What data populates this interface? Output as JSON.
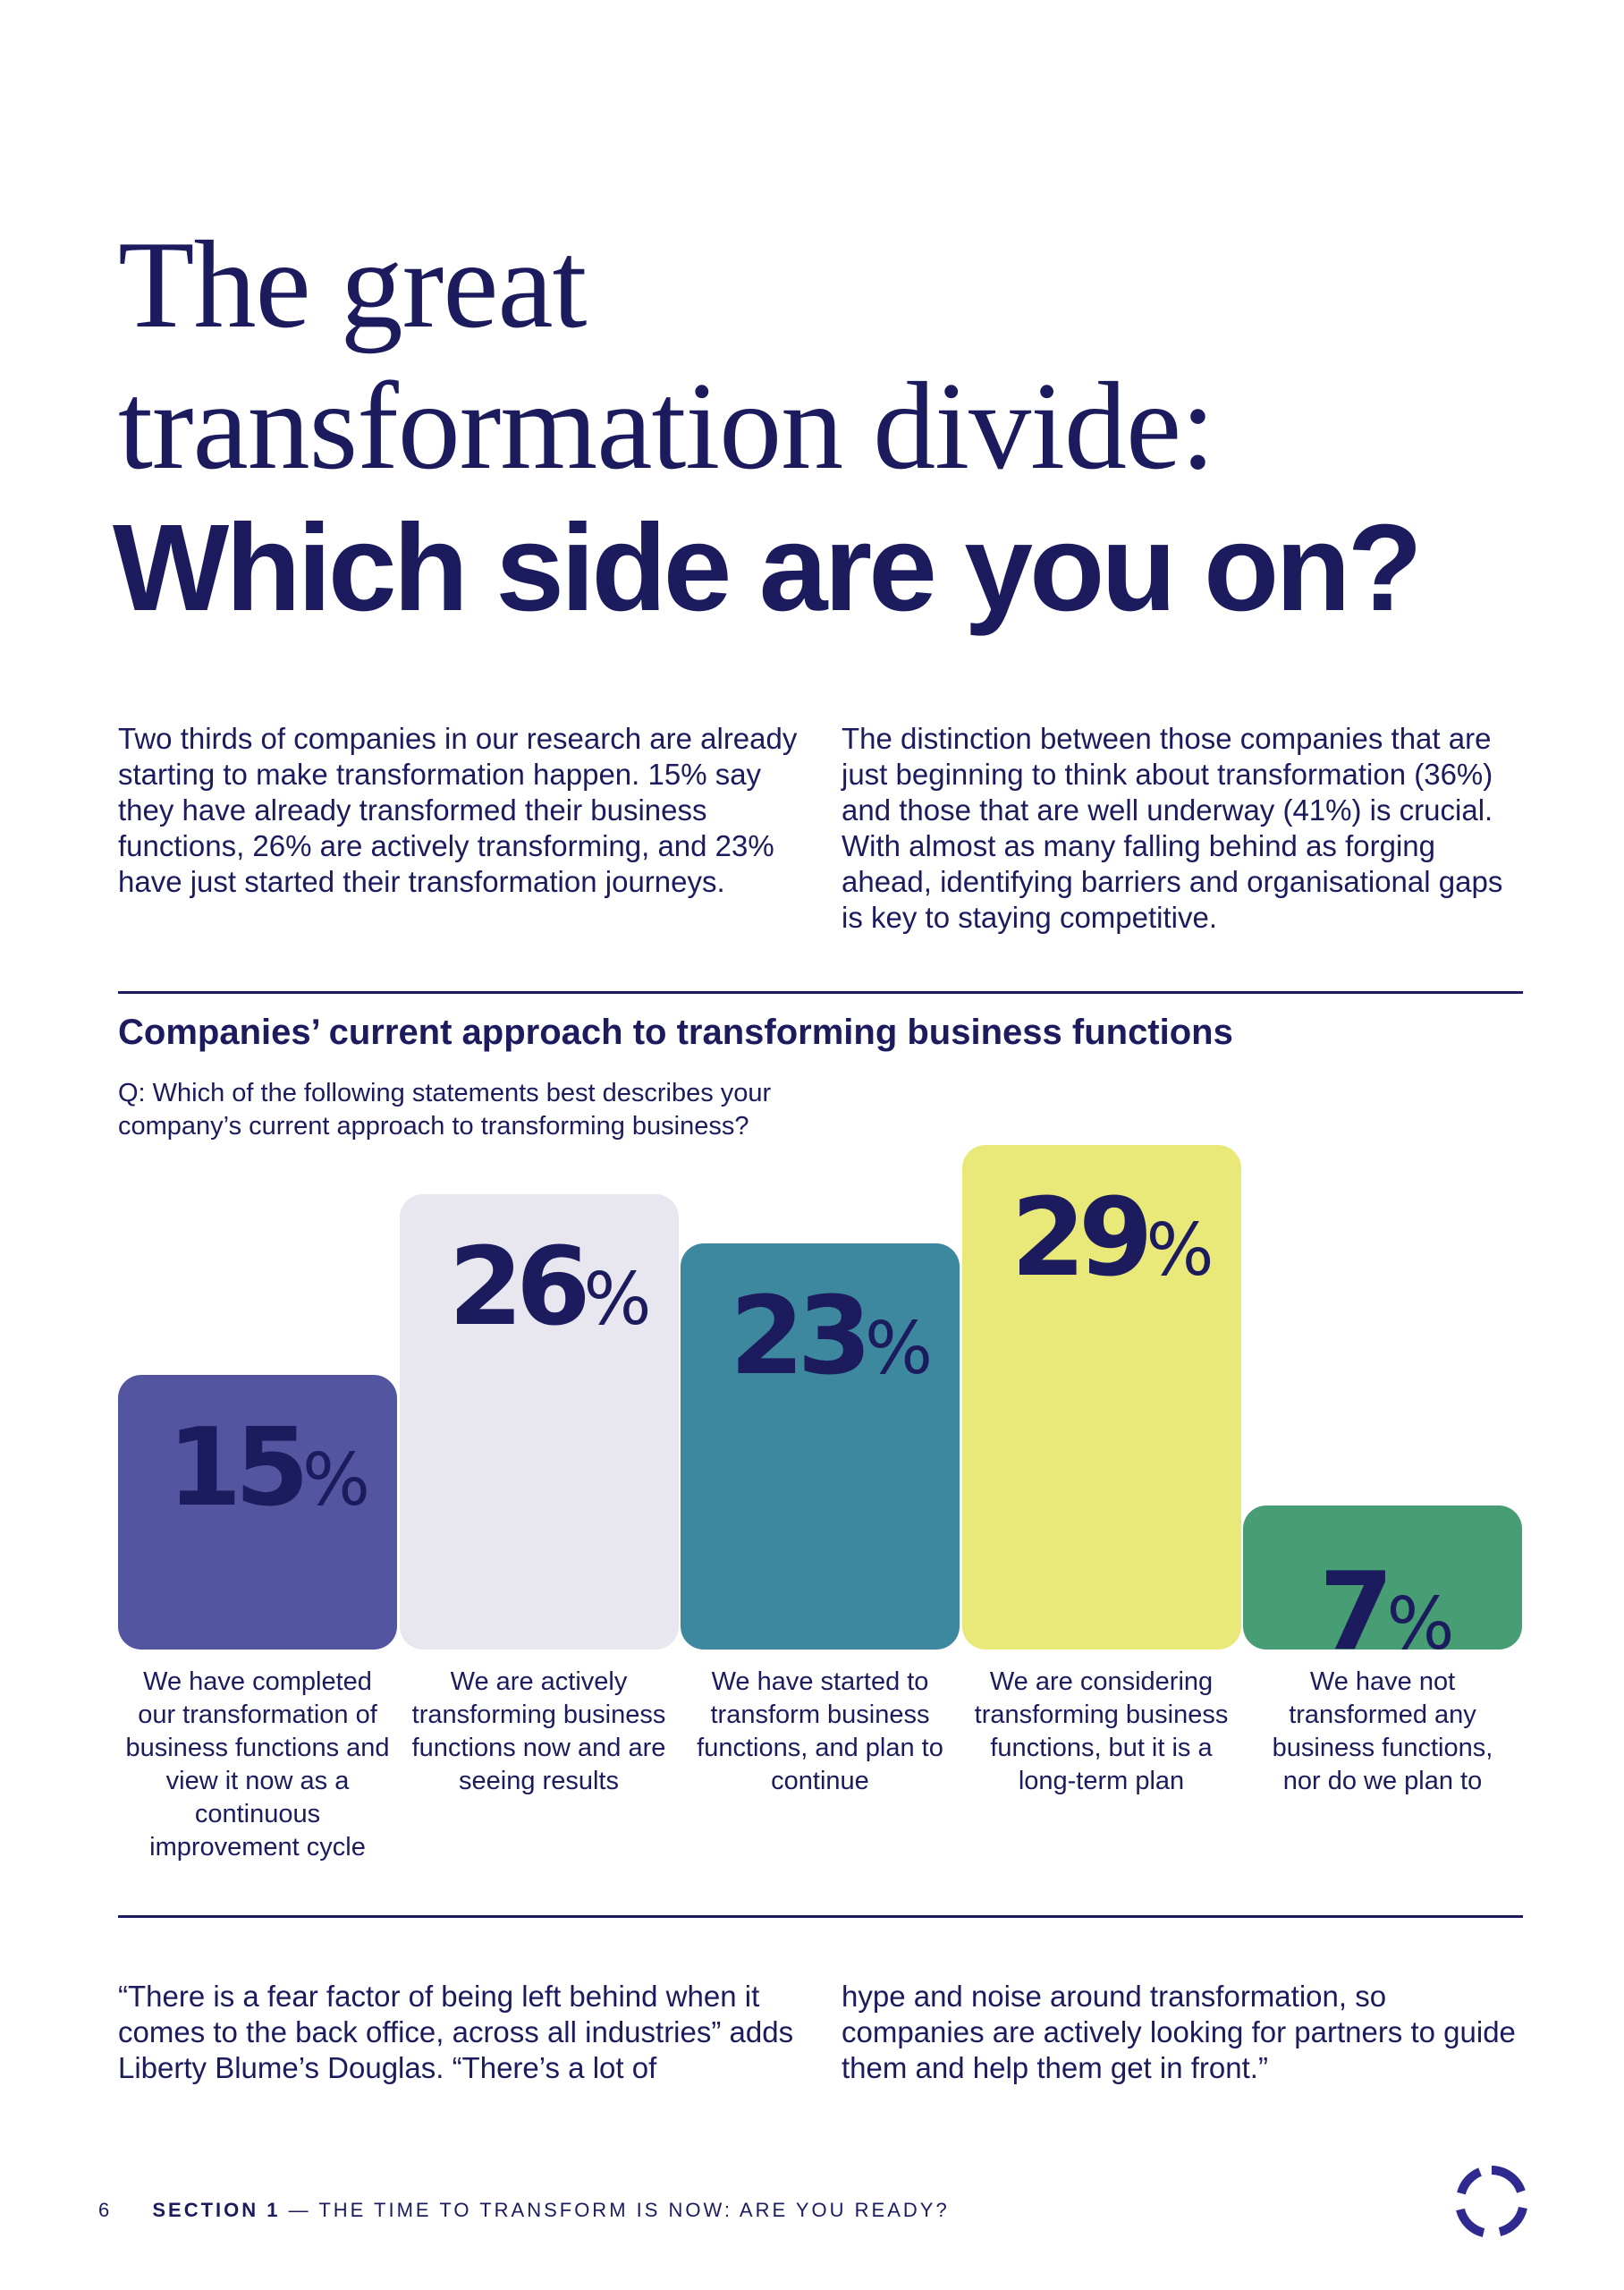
{
  "title": {
    "line1": "The great",
    "line2": "transformation divide:",
    "line3": "Which side are you on?"
  },
  "intro": {
    "left": "Two thirds of companies in our research are already starting to make transformation happen. 15% say they have already transformed their business functions, 26% are actively transforming, and 23% have just started their transformation journeys.",
    "right": "The distinction between those companies that are just beginning to think about transformation (36%) and those that are well underway (41%) is crucial. With almost as many falling behind as forging ahead, identifying barriers and organisational gaps is key to staying competitive."
  },
  "chart_data": {
    "type": "bar",
    "title": "Companies’ current approach to transforming business functions",
    "subtitle": "Q: Which of the following statements best describes your company’s current approach to transforming business?",
    "categories": [
      "We have completed our transformation of business functions and view it now as a continuous improvement cycle",
      "We are actively transforming business functions now and are seeing results",
      "We have started to transform business functions, and plan to continue",
      "We are considering transforming business functions, but it is a long-term plan",
      "We have not transformed any business functions, nor do we plan to"
    ],
    "values": [
      15,
      26,
      23,
      29,
      7
    ],
    "unit": "%",
    "colors": [
      "#5355a0",
      "#e8e6ee",
      "#3d889f",
      "#e9e97a",
      "#479d74"
    ],
    "grid": false
  },
  "quote": {
    "left": "“There is a fear factor of being left behind when it comes to the back office, across all industries” adds Liberty Blume’s Douglas. “There’s a lot of",
    "right": "hype and noise around transformation, so companies are actively looking for partners to guide them and help them get in front.”"
  },
  "footer": {
    "page_number": "6",
    "section": "SECTION 1",
    "section_title": " — THE TIME TO TRANSFORM IS NOW: ARE YOU READY?",
    "logo_icon": "circular-arrows-logo"
  }
}
